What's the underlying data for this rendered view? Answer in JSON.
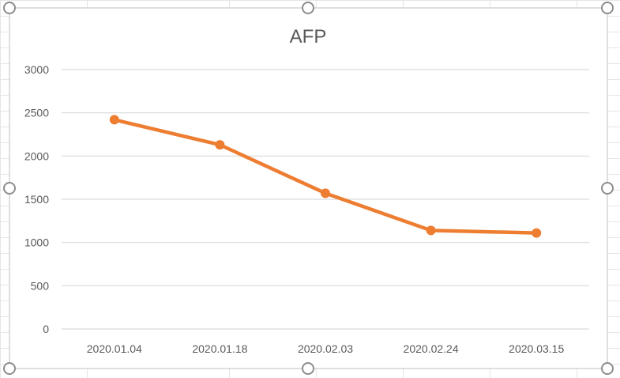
{
  "chart_data": {
    "type": "line",
    "title": "AFP",
    "xlabel": "",
    "ylabel": "",
    "categories": [
      "2020.01.04",
      "2020.01.18",
      "2020.02.03",
      "2020.02.24",
      "2020.03.15"
    ],
    "series": [
      {
        "values": [
          2420,
          2130,
          1570,
          1140,
          1110
        ]
      }
    ],
    "ylim": [
      0,
      3000
    ],
    "yticks": [
      0,
      500,
      1000,
      1500,
      2000,
      2500,
      3000
    ],
    "grid": "horizontal",
    "legend": "none",
    "colors": {
      "series": "#ED7D31",
      "gridline": "#D9D9D9",
      "text": "#595959",
      "frame": "#BFBFBF",
      "handle": "#8C8C8C"
    }
  }
}
